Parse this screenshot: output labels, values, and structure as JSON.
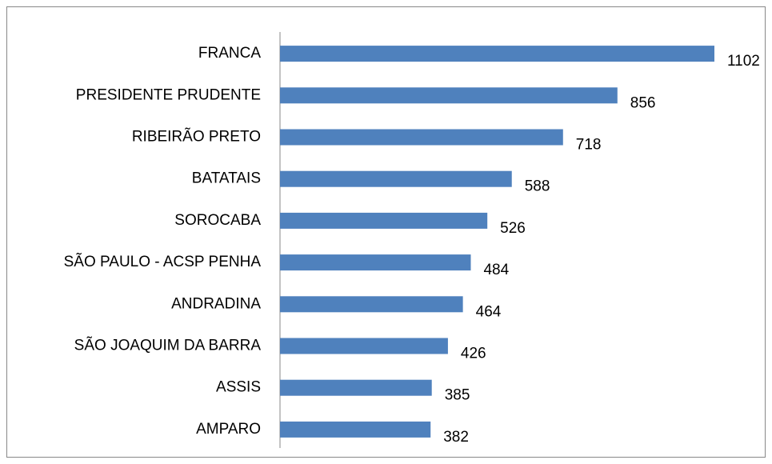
{
  "chart_data": {
    "type": "bar",
    "orientation": "horizontal",
    "categories": [
      "FRANCA",
      "PRESIDENTE PRUDENTE",
      "RIBEIRÃO PRETO",
      "BATATAIS",
      "SOROCABA",
      "SÃO PAULO - ACSP PENHA",
      "ANDRADINA",
      "SÃO JOAQUIM DA BARRA",
      "ASSIS",
      "AMPARO"
    ],
    "values": [
      1102,
      856,
      718,
      588,
      526,
      484,
      464,
      426,
      385,
      382
    ],
    "color": "#4f81bd"
  }
}
